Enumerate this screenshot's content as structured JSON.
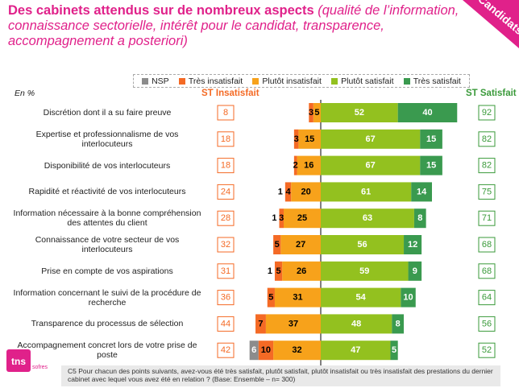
{
  "header": {
    "title_main": "Des cabinets attendus sur de nombreux aspects",
    "title_sub": "(qualité de l’information, connaissance sectorielle, intérêt pour le candidat, transparence, accompagnement a posteriori)",
    "corner_tag": "Candidats"
  },
  "unit_label": "En %",
  "st_insatisfait_label": "ST Insatisfait",
  "st_satisfait_label": "ST Satisfait",
  "footnote": "C5 Pour chacun des points suivants, avez-vous été très satisfait, plutôt satisfait, plutôt insatisfait ou très insatisfait des prestations du dernier cabinet avec lequel vous avez été en relation ? (Base: Ensemble – n= 300)",
  "logo": {
    "main": "tns",
    "sub": "sofres"
  },
  "colors": {
    "nsp": "#8c8c8c",
    "tres_insatisfait": "#f46a25",
    "plutot_insatisfait": "#f7a21b",
    "plutot_satisfait": "#93c11f",
    "tres_satisfait": "#3a9a4f",
    "title": "#e0218a"
  },
  "chart_data": {
    "type": "bar",
    "orientation": "horizontal",
    "stacked": "diverging",
    "legend": [
      "NSP",
      "Très insatisfait",
      "Plutôt  insatisfait",
      "Plutôt satisfait",
      "Très satisfait"
    ],
    "categories": [
      "Discrétion dont il a su faire preuve",
      "Expertise et professionnalisme de vos interlocuteurs",
      "Disponibilité de vos interlocuteurs",
      "Rapidité et réactivité de vos interlocuteurs",
      "Information nécessaire à la bonne compréhension des attentes du client",
      "Connaissance de votre secteur de vos interlocuteurs",
      "Prise en compte de vos aspirations",
      "Information concernant le suivi de la procédure de recherche",
      "Transparence du processus de sélection",
      "Accompagnement concret lors de votre prise de poste"
    ],
    "series": [
      {
        "name": "NSP",
        "values": [
          null,
          null,
          null,
          null,
          null,
          null,
          null,
          null,
          null,
          6
        ]
      },
      {
        "name": "Très insatisfait",
        "values": [
          3,
          3,
          2,
          4,
          3,
          5,
          5,
          5,
          7,
          10
        ]
      },
      {
        "name": "Plutôt  insatisfait",
        "values": [
          5,
          15,
          16,
          20,
          25,
          27,
          26,
          31,
          37,
          32
        ]
      },
      {
        "name": "Plutôt satisfait",
        "values": [
          52,
          67,
          67,
          61,
          63,
          56,
          59,
          54,
          48,
          47
        ]
      },
      {
        "name": "Très satisfait",
        "values": [
          40,
          15,
          15,
          14,
          8,
          12,
          9,
          10,
          8,
          5
        ]
      }
    ],
    "outside_labels": [
      null,
      null,
      null,
      "1",
      "1",
      null,
      "1",
      null,
      null,
      null
    ],
    "st_insatisfait": [
      8,
      18,
      18,
      24,
      28,
      32,
      31,
      36,
      44,
      42
    ],
    "st_satisfait": [
      92,
      82,
      82,
      75,
      71,
      68,
      68,
      64,
      56,
      52
    ]
  }
}
